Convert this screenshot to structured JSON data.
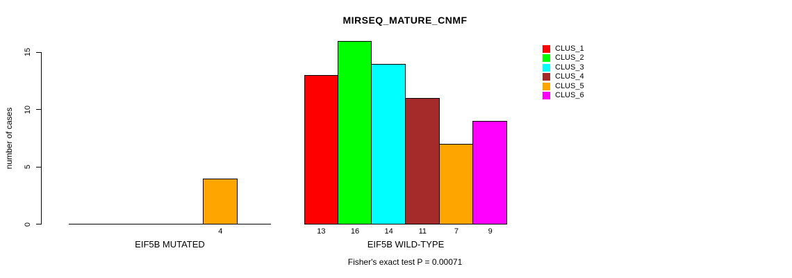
{
  "figure": {
    "title": "MIRSEQ_MATURE_CNMF",
    "footer": "Fisher's exact test P = 0.00071"
  },
  "chart_data": {
    "type": "bar",
    "title": "MIRSEQ_MATURE_CNMF",
    "xlabel": "",
    "ylabel": "number of cases",
    "ylim": [
      0,
      16
    ],
    "yticks": [
      0,
      5,
      10,
      15
    ],
    "grid": false,
    "legend_position": "right",
    "categories": [
      "CLUS_1",
      "CLUS_2",
      "CLUS_3",
      "CLUS_4",
      "CLUS_5",
      "CLUS_6"
    ],
    "legend": [
      {
        "label": "CLUS_1",
        "color": "#FF0000"
      },
      {
        "label": "CLUS_2",
        "color": "#00FF00"
      },
      {
        "label": "CLUS_3",
        "color": "#00FFFF"
      },
      {
        "label": "CLUS_4",
        "color": "#A52A2A"
      },
      {
        "label": "CLUS_5",
        "color": "#FFA500"
      },
      {
        "label": "CLUS_6",
        "color": "#FF00FF"
      }
    ],
    "groups": [
      {
        "label": "EIF5B MUTATED",
        "values": [
          0,
          0,
          0,
          0,
          4,
          0
        ],
        "bar_labels": [
          "",
          "",
          "",
          "",
          "4",
          ""
        ]
      },
      {
        "label": "EIF5B WILD-TYPE",
        "values": [
          13,
          16,
          14,
          11,
          7,
          9
        ],
        "bar_labels": [
          "13",
          "16",
          "14",
          "11",
          "7",
          "9"
        ]
      }
    ],
    "annotation": "Fisher's exact test P = 0.00071"
  }
}
